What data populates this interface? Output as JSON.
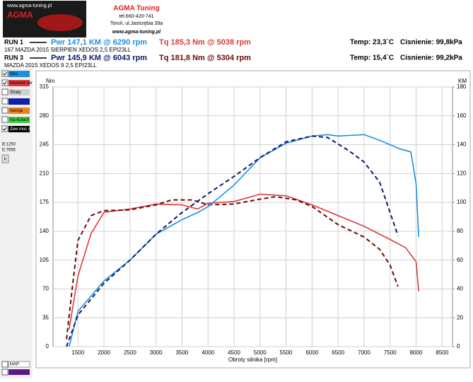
{
  "header": {
    "logo_url": "www.agma-tuning.pl",
    "logo_name": "AGMA",
    "company": "AGMA Tuning",
    "phone": "tel.660-420-741",
    "address": "Toruń, ul.Jastrzębia 39a",
    "website": "www.agma-tuning.pl"
  },
  "runs": [
    {
      "label": "RUN 1",
      "power": "Pwr  147,1 KM @ 6290 rpm",
      "torque": "Tq 185,3 Nm @ 5038 rpm",
      "temp": "Temp: 23,3`C",
      "pressure": "Cisnienie: 99,8kPa",
      "description": "167 MAZDA 2015 SIERPIEN XEDOS 2,5 EPI23LL",
      "power_color": "#1e8fe0",
      "torque_color": "#e03838"
    },
    {
      "label": "RUN 3",
      "power": "Pwr  145,9 KM @ 6043 rpm",
      "torque": "Tq 181,8 Nm @ 5304 rpm",
      "temp": "Temp: 15,4`C",
      "pressure": "Cisnienie: 99,2kPa",
      "description": "MAZDA 2015 XEDOS 9 2,5 EPI23LL",
      "power_color": "#0a1a6e",
      "torque_color": "#6a0a0a"
    }
  ],
  "panel": [
    {
      "label": "Moc",
      "color": "#1e8fe0",
      "checked": true
    },
    {
      "label": "Moment obr",
      "color": "#e03838",
      "checked": true
    },
    {
      "label": "Straty",
      "color": "#d0d0d0",
      "checked": false
    },
    {
      "label": "",
      "color": "#1020a0",
      "checked": false
    },
    {
      "label": "Inercja",
      "color": "#f08020",
      "checked": false
    },
    {
      "label": "Na Kolach",
      "color": "#40d040",
      "checked": false
    },
    {
      "label": "Zew moc str",
      "color": "#000000",
      "checked": true
    }
  ],
  "panel_info": {
    "begin": "B:1250",
    "end": "E:7655",
    "button": "k",
    "map": "MAP"
  },
  "chart_data": {
    "type": "line",
    "x_label": "Obroty silnika [rpm]",
    "y_label": "Nm",
    "y2_label": "KM",
    "xlim": [
      1020,
      8700
    ],
    "xticks": [
      1500,
      2000,
      2500,
      3000,
      3500,
      4000,
      4500,
      5000,
      5500,
      6000,
      6500,
      7000,
      7500,
      8000,
      8500
    ],
    "ylim": [
      0,
      315
    ],
    "yticks": [
      0,
      35,
      70,
      105,
      140,
      175,
      210,
      245,
      280,
      315
    ],
    "y2lim": [
      0,
      180
    ],
    "y2ticks": [
      0,
      20,
      40,
      60,
      80,
      100,
      120,
      140,
      160,
      180
    ],
    "grid": true,
    "series": [
      {
        "color": "#e03838",
        "dash": false,
        "axis": "y",
        "x": [
          1330,
          1500,
          1750,
          2000,
          2500,
          3000,
          3500,
          3800,
          4000,
          4500,
          5000,
          5500,
          6000,
          6500,
          7000,
          7500,
          7800,
          8000,
          8050
        ],
        "values": [
          21,
          86,
          137,
          163,
          167,
          173,
          172,
          167,
          174,
          176,
          185,
          183,
          172,
          159,
          146,
          130,
          120,
          103,
          67
        ]
      },
      {
        "color": "#6a0a0a",
        "dash": true,
        "axis": "y",
        "x": [
          1280,
          1400,
          1500,
          1750,
          2000,
          2500,
          3000,
          3300,
          3700,
          4000,
          4500,
          5000,
          5300,
          5700,
          6000,
          6500,
          7000,
          7300,
          7500,
          7650
        ],
        "values": [
          9,
          77,
          129,
          159,
          165,
          166,
          172,
          178,
          178,
          172,
          173,
          179,
          182,
          178,
          170,
          148,
          133,
          118,
          99,
          73
        ]
      },
      {
        "color": "#1e8fe0",
        "dash": false,
        "axis": "y2",
        "x": [
          1330,
          1500,
          2000,
          2500,
          3000,
          3500,
          3800,
          4000,
          4500,
          5000,
          5500,
          6000,
          6300,
          6500,
          7000,
          7300,
          7700,
          7900,
          8000,
          8050
        ],
        "values": [
          0,
          24.5,
          45.6,
          60,
          78,
          88,
          93,
          97,
          112,
          131,
          141,
          146,
          147,
          146,
          147,
          143,
          137,
          135,
          113,
          76
        ]
      },
      {
        "color": "#0a1a6e",
        "dash": true,
        "axis": "y2",
        "x": [
          1280,
          1500,
          2000,
          2500,
          3000,
          3500,
          4000,
          4500,
          5000,
          5500,
          6000,
          6300,
          6700,
          7000,
          7300,
          7500,
          7650
        ],
        "values": [
          0,
          22,
          44,
          60,
          78,
          93,
          106,
          118,
          131,
          142,
          146,
          145,
          136,
          128,
          114,
          93,
          77
        ]
      }
    ]
  }
}
